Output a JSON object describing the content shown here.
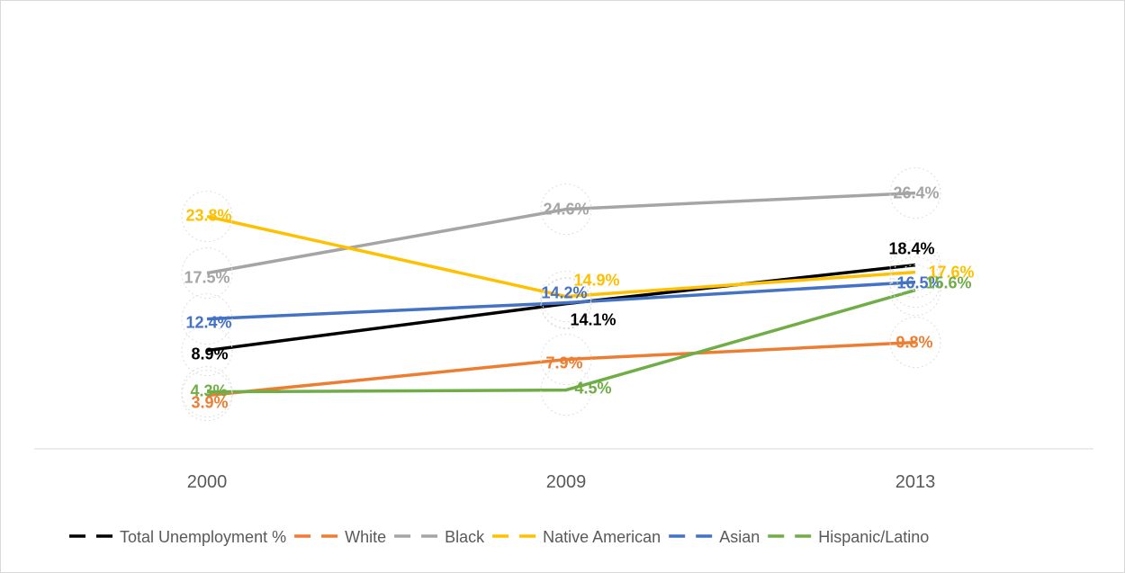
{
  "chart_data": {
    "type": "line",
    "title": "",
    "xlabel": "",
    "ylabel": "",
    "categories": [
      "2000",
      "2009",
      "2013"
    ],
    "ylim": [
      0,
      30
    ],
    "grid": false,
    "legend_position": "bottom",
    "series": [
      {
        "name": "Total Unemployment %",
        "color": "#000000",
        "values": [
          8.9,
          14.1,
          18.4
        ],
        "labels": [
          "8.9%",
          "14.1%",
          "18.4%"
        ]
      },
      {
        "name": "White",
        "color": "#ed7d31",
        "values": [
          3.9,
          7.9,
          9.8
        ],
        "labels": [
          "3.9%",
          "7.9%",
          "9.8%"
        ]
      },
      {
        "name": "Black",
        "color": "#a5a5a5",
        "values": [
          17.5,
          24.6,
          26.4
        ],
        "labels": [
          "17.5%",
          "24.6%",
          "26.4%"
        ]
      },
      {
        "name": "Native American",
        "color": "#ffc000",
        "values": [
          23.8,
          14.9,
          17.6
        ],
        "labels": [
          "23.8%",
          "14.9%",
          "17.6%"
        ]
      },
      {
        "name": "Asian",
        "color": "#4472c4",
        "values": [
          12.4,
          14.2,
          16.5
        ],
        "labels": [
          "12.4%",
          "14.2%",
          "16.5%"
        ]
      },
      {
        "name": "Hispanic/Latino",
        "color": "#70ad47",
        "values": [
          4.3,
          4.5,
          15.6
        ],
        "labels": [
          "4.3%",
          "4.5%",
          "15.6%"
        ]
      }
    ]
  }
}
